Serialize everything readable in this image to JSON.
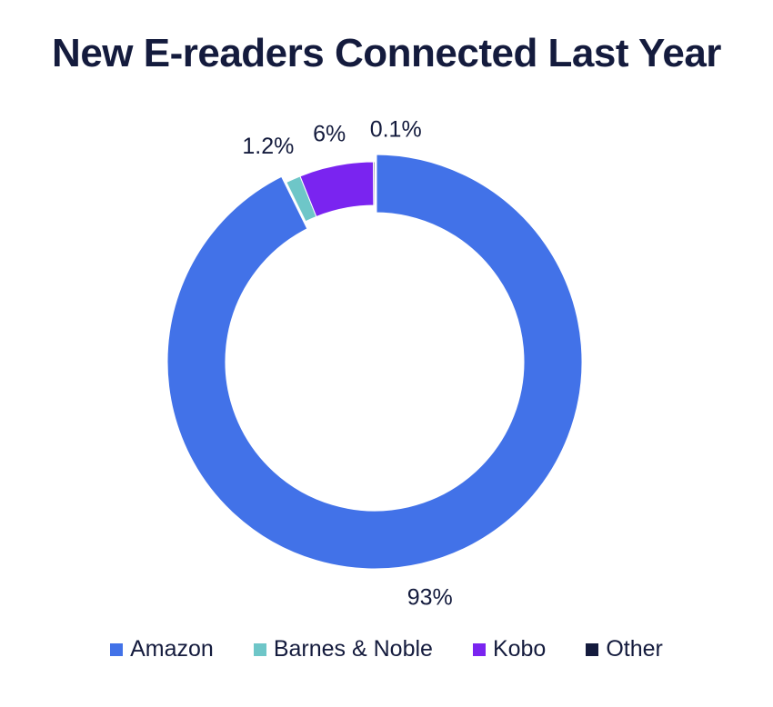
{
  "chart_data": {
    "type": "pie",
    "title": "New E-readers Connected Last Year",
    "categories": [
      "Amazon",
      "Barnes & Noble",
      "Kobo",
      "Other"
    ],
    "values": [
      93,
      1.2,
      6,
      0.1
    ],
    "labels": [
      "93%",
      "1.2%",
      "6%",
      "0.1%"
    ],
    "colors": [
      "#4272e8",
      "#6ec6c8",
      "#7a24f0",
      "#141b3d"
    ],
    "legend_position": "bottom",
    "hole": true
  }
}
